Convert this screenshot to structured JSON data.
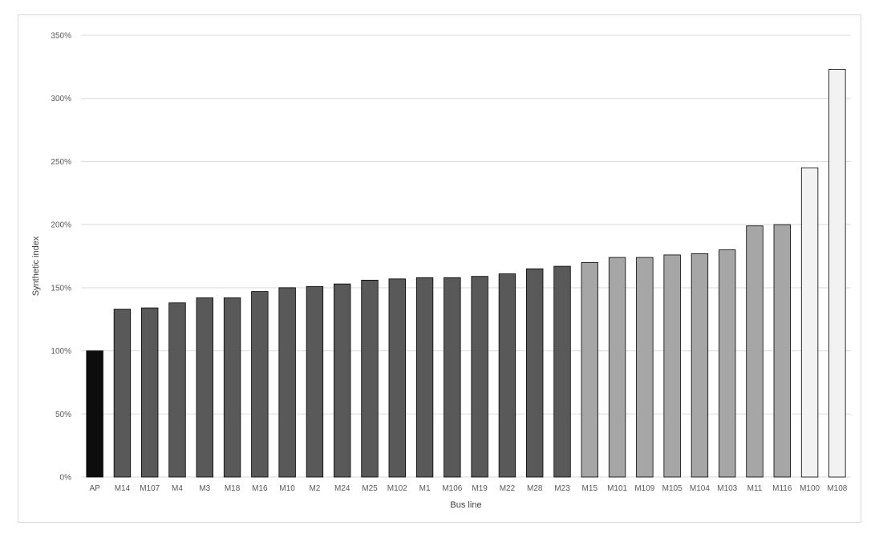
{
  "chart_data": {
    "type": "bar",
    "title": "",
    "xlabel": "Bus line",
    "ylabel": "Synthetic index",
    "ylim": [
      0,
      3.5
    ],
    "ytick_step": 0.5,
    "ytick_format": "percent",
    "grid": "horizontal",
    "legend": "none",
    "categories": [
      "AP",
      "M14",
      "M107",
      "M4",
      "M3",
      "M18",
      "M16",
      "M10",
      "M2",
      "M24",
      "M25",
      "M102",
      "M1",
      "M106",
      "M19",
      "M22",
      "M28",
      "M23",
      "M15",
      "M101",
      "M109",
      "M105",
      "M104",
      "M103",
      "M11",
      "M116",
      "M100",
      "M108"
    ],
    "values": [
      1.0,
      1.33,
      1.34,
      1.38,
      1.42,
      1.42,
      1.47,
      1.5,
      1.51,
      1.53,
      1.56,
      1.57,
      1.58,
      1.58,
      1.59,
      1.61,
      1.65,
      1.67,
      1.7,
      1.74,
      1.74,
      1.76,
      1.77,
      1.8,
      1.99,
      2.0,
      2.45,
      3.23
    ],
    "color_groups": [
      0,
      1,
      1,
      1,
      1,
      1,
      1,
      1,
      1,
      1,
      1,
      1,
      1,
      1,
      1,
      1,
      1,
      1,
      2,
      2,
      2,
      2,
      2,
      2,
      2,
      2,
      3,
      3
    ],
    "group_colors": [
      "#0d0d0d",
      "#595959",
      "#a6a6a6",
      "#f2f2f2"
    ]
  }
}
